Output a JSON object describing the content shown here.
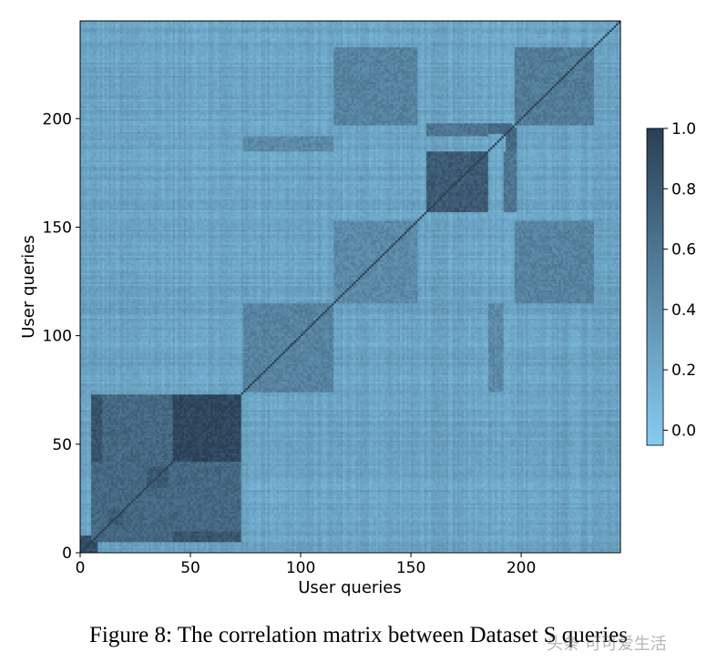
{
  "chart_data": {
    "type": "heatmap",
    "title": "",
    "xlabel": "User queries",
    "ylabel": "User queries",
    "xlim": [
      0,
      245
    ],
    "ylim": [
      0,
      245
    ],
    "x_ticks": [
      0,
      50,
      100,
      150,
      200
    ],
    "y_ticks": [
      0,
      50,
      100,
      150,
      200
    ],
    "colorbar": {
      "min": -0.05,
      "max": 1.0,
      "ticks": [
        "0.0",
        "0.2",
        "0.4",
        "0.6",
        "0.8",
        "1.0"
      ],
      "color_low": "#86ccf0",
      "color_high": "#2a3f55"
    },
    "background_value": 0.25,
    "diagonal_value": 1.0,
    "blocks": [
      {
        "range": [
          0,
          8
        ],
        "value": 0.9
      },
      {
        "range": [
          5,
          73
        ],
        "value": 0.7
      },
      {
        "range": [
          42,
          73
        ],
        "value": 0.95
      },
      {
        "range": [
          13,
          20
        ],
        "value": 0.8
      },
      {
        "range": [
          30,
          40
        ],
        "value": 0.8
      },
      {
        "range": [
          74,
          115
        ],
        "value": 0.5
      },
      {
        "range": [
          115,
          153
        ],
        "value": 0.45
      },
      {
        "range": [
          157,
          185
        ],
        "value": 0.8
      },
      {
        "range": [
          197,
          233
        ],
        "value": 0.55
      }
    ],
    "off_diagonal_blocks": [
      {
        "x": [
          115,
          153
        ],
        "y": [
          197,
          233
        ],
        "value": 0.5
      },
      {
        "x": [
          197,
          233
        ],
        "y": [
          115,
          153
        ],
        "value": 0.5
      },
      {
        "x": [
          42,
          73
        ],
        "y": [
          5,
          10
        ],
        "value": 0.85
      },
      {
        "x": [
          157,
          196
        ],
        "y": [
          193,
          198
        ],
        "value": 0.7
      },
      {
        "x": [
          192,
          198
        ],
        "y": [
          157,
          185
        ],
        "value": 0.6
      },
      {
        "x": [
          74,
          115
        ],
        "y": [
          185,
          192
        ],
        "value": 0.45
      }
    ]
  },
  "caption": "Figure 8: The correlation matrix between Dataset S queries",
  "watermark": "头条 可可爱生活"
}
